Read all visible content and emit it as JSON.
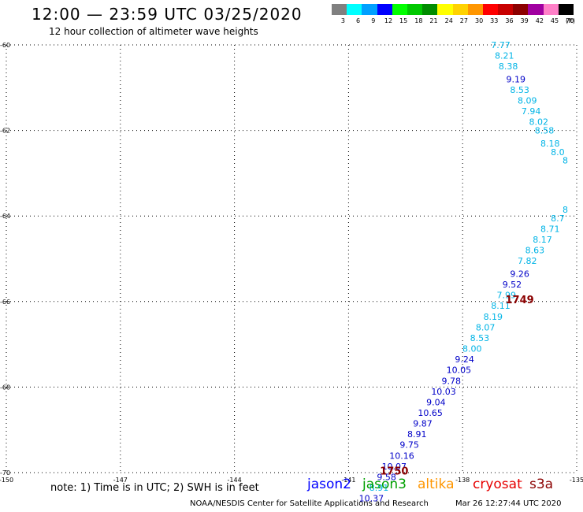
{
  "header": {
    "title": "12:00 — 23:59 UTC 03/25/2020",
    "subtitle": "12 hour collection of altimeter wave heights"
  },
  "legend": {
    "unit": "(ft)",
    "bins": [
      {
        "color": "#808080",
        "label": "3"
      },
      {
        "color": "#00ffff",
        "label": "6"
      },
      {
        "color": "#00a0ff",
        "label": "9"
      },
      {
        "color": "#0000ff",
        "label": "12"
      },
      {
        "color": "#00ff00",
        "label": "15"
      },
      {
        "color": "#00c800",
        "label": "18"
      },
      {
        "color": "#008c00",
        "label": "21"
      },
      {
        "color": "#ffff00",
        "label": "24"
      },
      {
        "color": "#ffd200",
        "label": "27"
      },
      {
        "color": "#ff9600",
        "label": "30"
      },
      {
        "color": "#ff0000",
        "label": "33"
      },
      {
        "color": "#c80000",
        "label": "36"
      },
      {
        "color": "#8c0000",
        "label": "39"
      },
      {
        "color": "#a000a0",
        "label": "42"
      },
      {
        "color": "#ff80c8",
        "label": "45"
      },
      {
        "color": "#000000",
        "label": "70"
      }
    ]
  },
  "chart_data": {
    "type": "scatter",
    "xlim": [
      -150,
      -135
    ],
    "ylim": [
      -70,
      -60
    ],
    "x_ticks": [
      "-150",
      "-147",
      "-144",
      "-141",
      "-138",
      "-135"
    ],
    "y_ticks": [
      "-60",
      "-62",
      "-64",
      "-66",
      "-68",
      "-70"
    ],
    "grid": true,
    "colors": {
      "light": "#00b4e6",
      "dark": "#0000c8",
      "time_label": "#8b0000"
    },
    "points": [
      {
        "lon": -137.0,
        "lat": -60.0,
        "label": "7.77",
        "tone": "light"
      },
      {
        "lon": -136.9,
        "lat": -60.25,
        "label": "8.21",
        "tone": "light"
      },
      {
        "lon": -136.8,
        "lat": -60.5,
        "label": "8.38",
        "tone": "light"
      },
      {
        "lon": -136.6,
        "lat": -60.8,
        "label": "9.19",
        "tone": "dark"
      },
      {
        "lon": -136.5,
        "lat": -61.05,
        "label": "8.53",
        "tone": "light"
      },
      {
        "lon": -136.3,
        "lat": -61.3,
        "label": "8.09",
        "tone": "light"
      },
      {
        "lon": -136.2,
        "lat": -61.55,
        "label": "7.94",
        "tone": "light"
      },
      {
        "lon": -136.0,
        "lat": -61.8,
        "label": "8.02",
        "tone": "light"
      },
      {
        "lon": -135.85,
        "lat": -62.0,
        "label": "8.58",
        "tone": "light"
      },
      {
        "lon": -135.7,
        "lat": -62.3,
        "label": "8.18",
        "tone": "light"
      },
      {
        "lon": -135.5,
        "lat": -62.5,
        "label": "8.0",
        "tone": "light"
      },
      {
        "lon": -135.3,
        "lat": -62.7,
        "label": "8",
        "tone": "light"
      },
      {
        "lon": -135.3,
        "lat": -63.85,
        "label": "8",
        "tone": "light"
      },
      {
        "lon": -135.5,
        "lat": -64.05,
        "label": "8.7",
        "tone": "light"
      },
      {
        "lon": -135.7,
        "lat": -64.3,
        "label": "8.71",
        "tone": "light"
      },
      {
        "lon": -135.9,
        "lat": -64.55,
        "label": "8.17",
        "tone": "light"
      },
      {
        "lon": -136.1,
        "lat": -64.8,
        "label": "8.63",
        "tone": "light"
      },
      {
        "lon": -136.3,
        "lat": -65.05,
        "label": "7.82",
        "tone": "light"
      },
      {
        "lon": -136.5,
        "lat": -65.35,
        "label": "9.26",
        "tone": "dark"
      },
      {
        "lon": -136.7,
        "lat": -65.6,
        "label": "9.52",
        "tone": "dark"
      },
      {
        "lon": -136.85,
        "lat": -65.85,
        "label": "7.99",
        "tone": "light"
      },
      {
        "lon": -137.0,
        "lat": -66.1,
        "label": "8.11",
        "tone": "light"
      },
      {
        "lon": -137.2,
        "lat": -66.35,
        "label": "8.19",
        "tone": "light"
      },
      {
        "lon": -137.4,
        "lat": -66.6,
        "label": "8.07",
        "tone": "light"
      },
      {
        "lon": -137.55,
        "lat": -66.85,
        "label": "8.53",
        "tone": "light"
      },
      {
        "lon": -137.75,
        "lat": -67.1,
        "label": "8.00",
        "tone": "light"
      },
      {
        "lon": -137.95,
        "lat": -67.35,
        "label": "9.24",
        "tone": "dark"
      },
      {
        "lon": -138.1,
        "lat": -67.6,
        "label": "10.05",
        "tone": "dark"
      },
      {
        "lon": -138.3,
        "lat": -67.85,
        "label": "9.78",
        "tone": "dark"
      },
      {
        "lon": -138.5,
        "lat": -68.1,
        "label": "10.03",
        "tone": "dark"
      },
      {
        "lon": -138.7,
        "lat": -68.35,
        "label": "9.04",
        "tone": "dark"
      },
      {
        "lon": -138.85,
        "lat": -68.6,
        "label": "10.65",
        "tone": "dark"
      },
      {
        "lon": -139.05,
        "lat": -68.85,
        "label": "9.87",
        "tone": "dark"
      },
      {
        "lon": -139.2,
        "lat": -69.1,
        "label": "8.91",
        "tone": "dark"
      },
      {
        "lon": -139.4,
        "lat": -69.35,
        "label": "9.75",
        "tone": "dark"
      },
      {
        "lon": -139.6,
        "lat": -69.6,
        "label": "10.16",
        "tone": "dark"
      },
      {
        "lon": -139.8,
        "lat": -69.85,
        "label": "10.07",
        "tone": "dark"
      },
      {
        "lon": -140.0,
        "lat": -70.1,
        "label": "9.58",
        "tone": "dark"
      },
      {
        "lon": -140.2,
        "lat": -70.35,
        "label": "8.91",
        "tone": "light"
      },
      {
        "lon": -140.4,
        "lat": -70.6,
        "label": "10.37",
        "tone": "dark"
      }
    ],
    "time_labels": [
      {
        "lon": -136.5,
        "lat": -65.95,
        "label": "1749"
      },
      {
        "lon": -139.8,
        "lat": -69.95,
        "label": "1750"
      }
    ]
  },
  "footer": {
    "note": "note: 1) Time is in UTC; 2) SWH is in feet",
    "satellites": [
      {
        "name": "jason2",
        "color": "#0000ff"
      },
      {
        "name": "jason3",
        "color": "#00a000"
      },
      {
        "name": "altika",
        "color": "#ff9600"
      },
      {
        "name": "cryosat",
        "color": "#e60000"
      },
      {
        "name": "s3a",
        "color": "#8b0000"
      }
    ],
    "credit": "NOAA/NESDIS Center for Satellite Applications and Research",
    "timestamp": "Mar 26 12:27:44 UTC 2020"
  }
}
